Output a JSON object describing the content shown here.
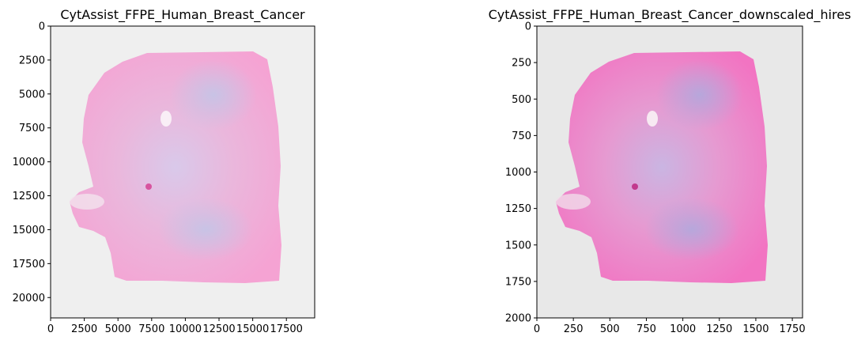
{
  "figure": {
    "panels": [
      {
        "title": "CytAssist_FFPE_Human_Breast_Cancer",
        "x_ticks": [
          "0",
          "2500",
          "5000",
          "7500",
          "10000",
          "12500",
          "15000",
          "17500"
        ],
        "y_ticks": [
          "0",
          "2500",
          "5000",
          "7500",
          "10000",
          "12500",
          "15000",
          "17500",
          "20000"
        ],
        "xlim": [
          0,
          19600
        ],
        "ylim": [
          21500,
          0
        ]
      },
      {
        "title": "CytAssist_FFPE_Human_Breast_Cancer_downscaled_hires",
        "x_ticks": [
          "0",
          "250",
          "500",
          "750",
          "1000",
          "1250",
          "1500",
          "1750"
        ],
        "y_ticks": [
          "0",
          "250",
          "500",
          "750",
          "1000",
          "1250",
          "1500",
          "1750",
          "2000"
        ],
        "xlim": [
          0,
          1820
        ],
        "ylim": [
          2000,
          0
        ]
      }
    ],
    "colors": {
      "background_left": "#efefef",
      "background_right": "#e8e8e8",
      "tissue_pink": "#f4a6d6",
      "tissue_purple": "#c9c2e3",
      "tissue_hot": "#ee5fb9"
    }
  }
}
